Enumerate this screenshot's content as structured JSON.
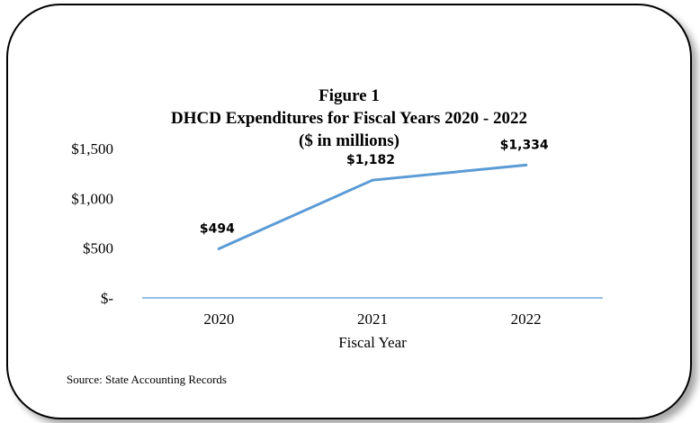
{
  "chart_data": {
    "type": "line",
    "title": "Figure 1",
    "subtitle": "DHCD Expenditures for Fiscal Years 2020 - 2022",
    "subtitle2": "($ in millions)",
    "xlabel": "Fiscal Year",
    "ylabel": "",
    "categories": [
      "2020",
      "2021",
      "2022"
    ],
    "series": [
      {
        "values": [
          494,
          1182,
          1334
        ],
        "labels": [
          "$494",
          "$1,182",
          "$1,334"
        ],
        "color": "#5b9bd5"
      }
    ],
    "ylim": [
      0,
      1500
    ],
    "yticks": [
      0,
      500,
      1000,
      1500
    ],
    "ytick_labels": [
      "$-",
      "$500",
      "$1,000",
      "$1,500"
    ],
    "grid": false,
    "axis_color": "#5b9bd5"
  },
  "source": "Source: State Accounting Records"
}
